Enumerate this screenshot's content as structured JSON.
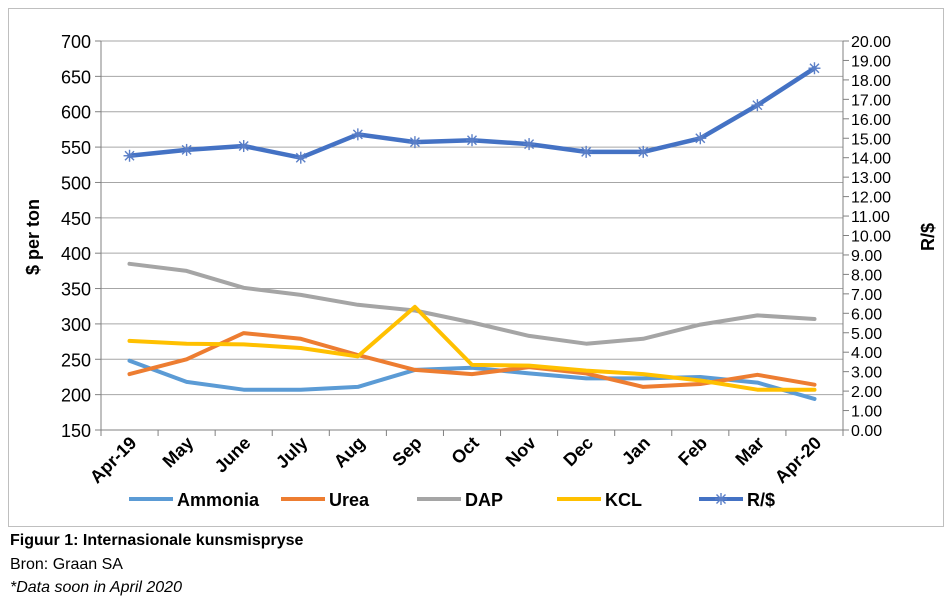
{
  "chart_data": {
    "type": "line",
    "categories": [
      "Apr-19",
      "May",
      "June",
      "July",
      "Aug",
      "Sep",
      "Oct",
      "Nov",
      "Dec",
      "Jan",
      "Feb",
      "Mar",
      "Apr-20"
    ],
    "ylabel": "$ per ton",
    "y2label": "R/$",
    "ylim": [
      150,
      700
    ],
    "yticks": [
      "150",
      "200",
      "250",
      "300",
      "350",
      "400",
      "450",
      "500",
      "550",
      "600",
      "650",
      "700"
    ],
    "y2lim": [
      0,
      20
    ],
    "y2ticks": [
      "0.00",
      "1.00",
      "2.00",
      "3.00",
      "4.00",
      "5.00",
      "6.00",
      "7.00",
      "8.00",
      "9.00",
      "10.00",
      "11.00",
      "12.00",
      "13.00",
      "14.00",
      "15.00",
      "16.00",
      "17.00",
      "18.00",
      "19.00",
      "20.00"
    ],
    "grid": "horizontal",
    "legend": "bottom",
    "series": [
      {
        "name": "Ammonia",
        "axis": "left",
        "color": "#5b9bd5",
        "values": [
          248,
          218,
          207,
          207,
          211,
          235,
          238,
          230,
          223,
          223,
          225,
          217,
          194
        ]
      },
      {
        "name": "Urea",
        "axis": "left",
        "color": "#ed7d31",
        "values": [
          229,
          250,
          287,
          279,
          256,
          235,
          229,
          239,
          230,
          211,
          215,
          228,
          214
        ]
      },
      {
        "name": "DAP",
        "axis": "left",
        "color": "#a5a5a5",
        "values": [
          385,
          375,
          351,
          341,
          327,
          319,
          302,
          283,
          272,
          279,
          299,
          312,
          307
        ]
      },
      {
        "name": "KCL",
        "axis": "left",
        "color": "#ffc000",
        "values": [
          276,
          272,
          271,
          266,
          254,
          324,
          242,
          241,
          234,
          229,
          220,
          207,
          207
        ]
      },
      {
        "name": "R/$",
        "axis": "right",
        "color": "#4472c4",
        "marker": "asterisk",
        "values": [
          14.1,
          14.4,
          14.6,
          14.0,
          15.2,
          14.8,
          14.9,
          14.7,
          14.3,
          14.3,
          15.0,
          16.7,
          18.6
        ]
      }
    ]
  },
  "caption": {
    "title": "Figuur 1: Internasionale kunsmispryse",
    "source": "Bron: Graan SA",
    "note": "*Data soon in April 2020"
  }
}
